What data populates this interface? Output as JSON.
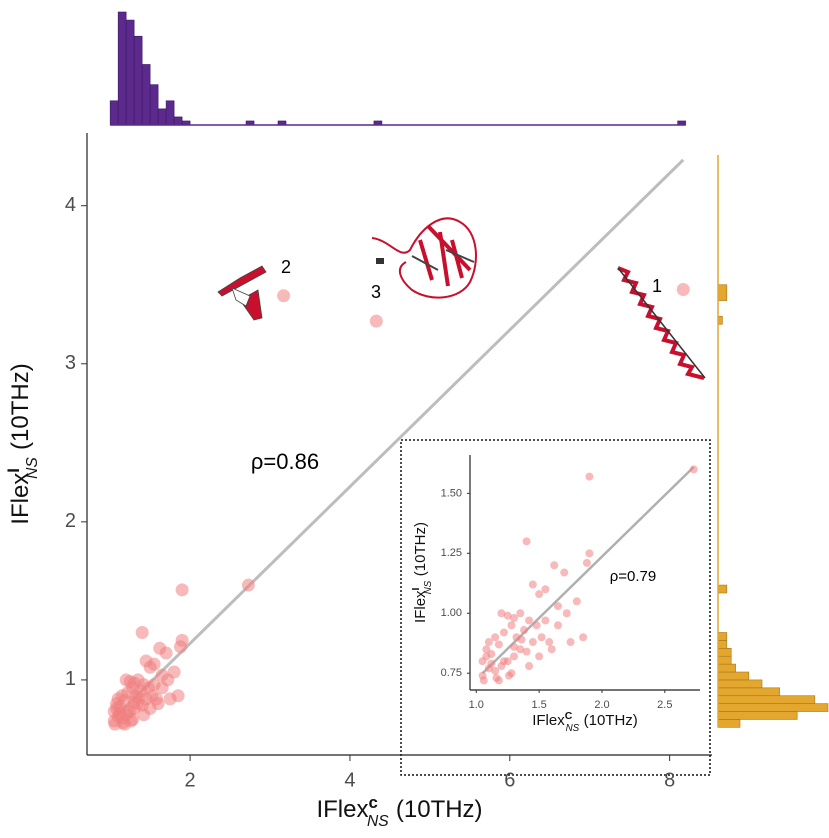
{
  "chart_data": [
    {
      "type": "scatter",
      "xlabel": {
        "base": "IFlex",
        "sup": "c",
        "sub": "NS",
        "unit": "(10THz)"
      },
      "ylabel": {
        "base": "IFlex",
        "sup": "I",
        "sub": "NS",
        "unit": "(10THz)"
      },
      "x": [
        8.17,
        3.17,
        4.33,
        2.73,
        1.9,
        1.4,
        1.9,
        1.88,
        1.62,
        1.7,
        1.55,
        1.45,
        1.5,
        1.8,
        1.72,
        1.65,
        1.35,
        1.3,
        1.25,
        1.2,
        1.15,
        1.1,
        1.05,
        1.08,
        1.12,
        1.18,
        1.22,
        1.28,
        1.32,
        1.38,
        1.42,
        1.48,
        1.52,
        1.58,
        1.6,
        1.75,
        1.85,
        1.3,
        1.25,
        1.2,
        1.15,
        1.1,
        1.05,
        1.35,
        1.4,
        1.45,
        1.5,
        1.28,
        1.22,
        1.18,
        1.12,
        1.08,
        1.3,
        1.36,
        1.42,
        1.26,
        1.16,
        1.06,
        1.55,
        1.65
      ],
      "y": [
        3.47,
        3.43,
        3.27,
        1.6,
        1.57,
        1.3,
        1.25,
        1.21,
        1.2,
        1.17,
        1.1,
        1.12,
        1.08,
        1.05,
        1.0,
        0.95,
        1.0,
        0.98,
        0.99,
        1.0,
        0.9,
        0.88,
        0.8,
        0.85,
        0.83,
        0.87,
        0.92,
        0.95,
        0.9,
        0.93,
        0.97,
        0.95,
        0.9,
        0.88,
        0.85,
        0.88,
        0.9,
        0.82,
        0.8,
        0.78,
        0.76,
        0.77,
        0.74,
        0.85,
        0.84,
        0.88,
        0.82,
        0.75,
        0.8,
        0.72,
        0.79,
        0.82,
        0.86,
        0.89,
        0.78,
        0.74,
        0.73,
        0.72,
        0.97,
        1.03
      ],
      "color": "#f08080",
      "fit_line": {
        "x": [
          1.05,
          8.17
        ],
        "y": [
          0.76,
          4.29
        ],
        "color": "#bdbdbd"
      },
      "xlim": [
        0.71,
        8.53
      ],
      "ylim": [
        0.525,
        4.46
      ],
      "xticks": [
        2,
        4,
        6,
        8
      ],
      "yticks": [
        1,
        2,
        3,
        4
      ],
      "annotations": [
        "1",
        "2",
        "3",
        "ρ=0.86"
      ]
    },
    {
      "type": "histogram",
      "orientation": "vertical",
      "color": "#5b2a8c",
      "bins": [
        1.0,
        1.1,
        1.2,
        1.3,
        1.4,
        1.5,
        1.6,
        1.7,
        1.8,
        1.9,
        2.0,
        2.7,
        2.8,
        3.1,
        3.2,
        4.3,
        4.4,
        8.1,
        8.2
      ],
      "counts": [
        6,
        28,
        26,
        22,
        15,
        10,
        4,
        6,
        2,
        1,
        0,
        1,
        0,
        1,
        0,
        1,
        0,
        1
      ],
      "ylim": [
        0,
        28
      ]
    },
    {
      "type": "histogram",
      "orientation": "horizontal",
      "color": "#e3a72f",
      "bins": [
        0.7,
        0.75,
        0.8,
        0.85,
        0.9,
        0.95,
        1.0,
        1.05,
        1.1,
        1.15,
        1.2,
        1.25,
        1.3,
        1.55,
        1.6,
        3.25,
        3.3,
        3.4,
        3.5
      ],
      "counts": [
        5,
        18,
        25,
        22,
        14,
        10,
        7,
        4,
        3,
        3,
        2,
        2,
        0,
        2,
        0,
        1,
        0,
        2
      ],
      "xlim": [
        0,
        25
      ]
    },
    {
      "type": "scatter",
      "xlabel": {
        "base": "IFlex",
        "sup": "C",
        "sub": "NS",
        "unit": "(10THz)"
      },
      "ylabel": {
        "base": "IFlex",
        "sup": "I",
        "sub": "NS",
        "unit": "(10THz)"
      },
      "x": [
        2.73,
        1.9,
        1.4,
        1.9,
        1.88,
        1.62,
        1.7,
        1.55,
        1.45,
        1.5,
        1.8,
        1.72,
        1.65,
        1.35,
        1.3,
        1.25,
        1.2,
        1.15,
        1.1,
        1.05,
        1.08,
        1.12,
        1.18,
        1.22,
        1.28,
        1.32,
        1.38,
        1.42,
        1.48,
        1.52,
        1.58,
        1.6,
        1.75,
        1.85,
        1.3,
        1.25,
        1.2,
        1.15,
        1.1,
        1.05,
        1.35,
        1.4,
        1.45,
        1.5,
        1.28,
        1.22,
        1.18,
        1.12,
        1.08,
        1.3,
        1.36,
        1.42,
        1.26,
        1.16,
        1.06,
        1.55,
        1.65
      ],
      "y": [
        1.6,
        1.57,
        1.3,
        1.25,
        1.21,
        1.2,
        1.17,
        1.1,
        1.12,
        1.08,
        1.05,
        1.0,
        0.95,
        1.0,
        0.98,
        0.99,
        1.0,
        0.9,
        0.88,
        0.8,
        0.85,
        0.83,
        0.87,
        0.92,
        0.95,
        0.9,
        0.93,
        0.97,
        0.95,
        0.9,
        0.88,
        0.85,
        0.88,
        0.9,
        0.82,
        0.8,
        0.78,
        0.76,
        0.77,
        0.74,
        0.85,
        0.84,
        0.88,
        0.82,
        0.75,
        0.8,
        0.72,
        0.79,
        0.82,
        0.86,
        0.89,
        0.78,
        0.74,
        0.73,
        0.72,
        0.97,
        1.03
      ],
      "color": "#f08080",
      "fit_line": {
        "x": [
          1.05,
          2.73
        ],
        "y": [
          0.75,
          1.61
        ],
        "color": "#b0b0b0"
      },
      "xlim": [
        0.95,
        2.78
      ],
      "ylim": [
        0.68,
        1.66
      ],
      "xticks": [
        {
          "value": 1.0,
          "label": "1.0"
        },
        {
          "value": 1.5,
          "label": "1.5"
        },
        {
          "value": 2.0,
          "label": "2.0"
        },
        {
          "value": 2.5,
          "label": "2.5"
        }
      ],
      "yticks": [
        0.75,
        {
          "value": 1.0,
          "label": "1.00"
        },
        1.25,
        {
          "value": 1.5,
          "label": "1.50"
        }
      ],
      "annotations": [
        "ρ=0.79"
      ]
    }
  ]
}
